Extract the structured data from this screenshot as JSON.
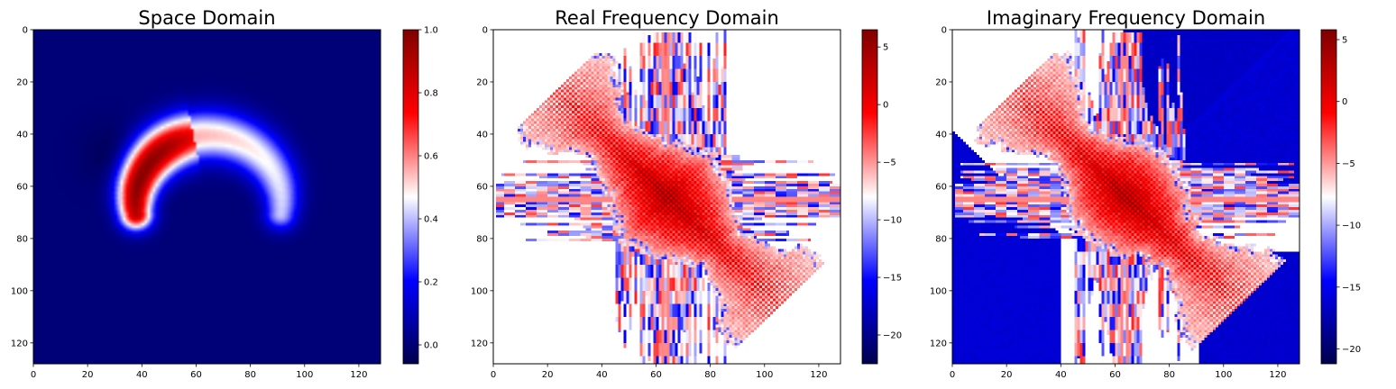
{
  "chart_data": [
    {
      "type": "heatmap",
      "title": "Space Domain",
      "xlim": [
        0,
        128
      ],
      "ylim": [
        128,
        0
      ],
      "xticks": [
        0,
        20,
        40,
        60,
        80,
        100,
        120
      ],
      "yticks": [
        0,
        20,
        40,
        60,
        80,
        100,
        120
      ],
      "colormap": "seismic",
      "colorbar": {
        "range": [
          -0.06,
          1.0
        ],
        "ticks": [
          0.0,
          0.2,
          0.4,
          0.6,
          0.8,
          1.0
        ]
      },
      "content": "smooth crescent-shaped blob on near-uniform dark blue background; arc from about (38,62) up through (55,40) to (90,70); red peak near x 40-60, y 40-60"
    },
    {
      "type": "heatmap",
      "title": "Real Frequency Domain",
      "xlim": [
        0,
        128
      ],
      "ylim": [
        128,
        0
      ],
      "xticks": [
        0,
        20,
        40,
        60,
        80,
        100,
        120
      ],
      "yticks": [
        0,
        20,
        40,
        60,
        80,
        100,
        120
      ],
      "colormap": "seismic",
      "colorbar": {
        "range": [
          -22.5,
          6.5
        ],
        "ticks": [
          5,
          0,
          -5,
          -10,
          -15,
          -20
        ]
      },
      "content": "log-magnitude pattern: diagonal red checkered band from top-left to bottom-right, horizontal streaks near rows 48-80 and vertical streaks near columns 45-85, white background"
    },
    {
      "type": "heatmap",
      "title": "Imaginary Frequency Domain",
      "xlim": [
        0,
        128
      ],
      "ylim": [
        128,
        0
      ],
      "xticks": [
        0,
        20,
        40,
        60,
        80,
        100,
        120
      ],
      "yticks": [
        0,
        20,
        40,
        60,
        80,
        100,
        120
      ],
      "colormap": "seismic",
      "colorbar": {
        "range": [
          -21.2,
          5.8
        ],
        "ticks": [
          5,
          0,
          -5,
          -10,
          -15,
          -20
        ]
      },
      "content": "same diagonal red checkered band with horizontal/vertical streaks; blue wedges in top-right and bottom-left corners"
    }
  ],
  "colors": {
    "seismic": [
      "#00004c",
      "#0000ff",
      "#ffffff",
      "#ff0000",
      "#7f0000"
    ]
  }
}
